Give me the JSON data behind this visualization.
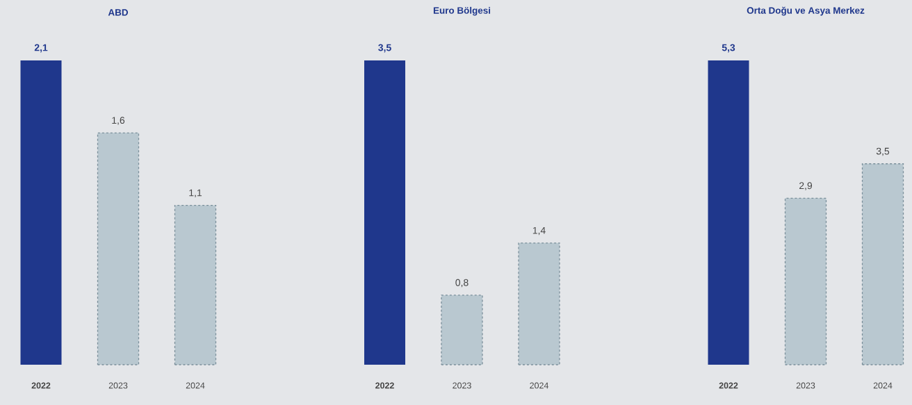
{
  "chart_data": [
    {
      "type": "bar",
      "title": "ABD",
      "categories": [
        "2022",
        "2023",
        "2024"
      ],
      "values": [
        2.1,
        1.6,
        1.1
      ],
      "value_labels": [
        "2,1",
        "1,6",
        "1,1"
      ],
      "colors": [
        "#1f378c",
        "#b9c8d0",
        "#b9c8d0"
      ]
    },
    {
      "type": "bar",
      "title": "Euro Bölgesi",
      "categories": [
        "2022",
        "2023",
        "2024"
      ],
      "values": [
        3.5,
        0.8,
        1.4
      ],
      "value_labels": [
        "3,5",
        "0,8",
        "1,4"
      ],
      "colors": [
        "#1f378c",
        "#b9c8d0",
        "#b9c8d0"
      ]
    },
    {
      "type": "bar",
      "title": "Orta Doğu ve Asya Merkez",
      "categories": [
        "2022",
        "2023",
        "2024"
      ],
      "values": [
        5.3,
        2.9,
        3.5
      ],
      "value_labels": [
        "5,3",
        "2,9",
        "3,5"
      ],
      "colors": [
        "#1f378c",
        "#b9c8d0",
        "#b9c8d0"
      ]
    }
  ]
}
